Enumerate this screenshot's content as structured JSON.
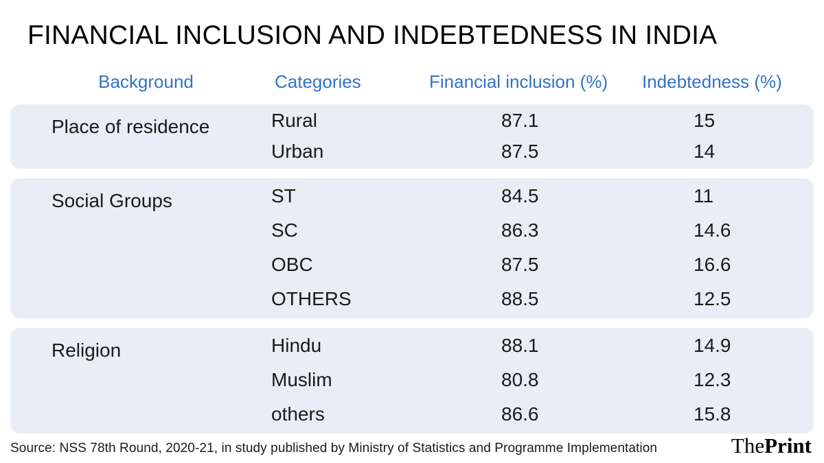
{
  "title": "FINANCIAL INCLUSION AND INDEBTEDNESS IN INDIA",
  "table": {
    "headers": [
      "Background",
      "Categories",
      "Financial inclusion (%)",
      "Indebtedness (%)"
    ],
    "groups": [
      {
        "background": "Place of residence",
        "rows": [
          {
            "category": "Rural",
            "financial_inclusion": "87.1",
            "indebtedness": "15"
          },
          {
            "category": "Urban",
            "financial_inclusion": "87.5",
            "indebtedness": "14"
          }
        ]
      },
      {
        "background": "Social Groups",
        "rows": [
          {
            "category": "ST",
            "financial_inclusion": "84.5",
            "indebtedness": "11"
          },
          {
            "category": "SC",
            "financial_inclusion": "86.3",
            "indebtedness": "14.6"
          },
          {
            "category": "OBC",
            "financial_inclusion": "87.5",
            "indebtedness": "16.6"
          },
          {
            "category": "OTHERS",
            "financial_inclusion": "88.5",
            "indebtedness": "12.5"
          }
        ]
      },
      {
        "background": "Religion",
        "rows": [
          {
            "category": "Hindu",
            "financial_inclusion": "88.1",
            "indebtedness": "14.9"
          },
          {
            "category": "Muslim",
            "financial_inclusion": "80.8",
            "indebtedness": "12.3"
          },
          {
            "category": "others",
            "financial_inclusion": "86.6",
            "indebtedness": "15.8"
          }
        ]
      }
    ]
  },
  "source": "Source: NSS 78th Round, 2020-21, in study published by Ministry of Statistics and Programme Implementation",
  "branding": {
    "the": "The",
    "print": "Print"
  },
  "colors": {
    "header_blue": "#3273C8",
    "band_background": "#E9EDF5",
    "text": "#1A1A1A",
    "title": "#000000"
  },
  "chart_data": {
    "type": "table",
    "title": "FINANCIAL INCLUSION AND INDEBTEDNESS IN INDIA",
    "columns": [
      "Background",
      "Categories",
      "Financial inclusion (%)",
      "Indebtedness (%)"
    ],
    "rows": [
      [
        "Place of residence",
        "Rural",
        87.1,
        15
      ],
      [
        "Place of residence",
        "Urban",
        87.5,
        14
      ],
      [
        "Social Groups",
        "ST",
        84.5,
        11
      ],
      [
        "Social Groups",
        "SC",
        86.3,
        14.6
      ],
      [
        "Social Groups",
        "OBC",
        87.5,
        16.6
      ],
      [
        "Social Groups",
        "OTHERS",
        88.5,
        12.5
      ],
      [
        "Religion",
        "Hindu",
        88.1,
        14.9
      ],
      [
        "Religion",
        "Muslim",
        80.8,
        12.3
      ],
      [
        "Religion",
        "others",
        86.6,
        15.8
      ]
    ],
    "source_note": "Source: NSS 78th Round, 2020-21, in study published by Ministry of Statistics and Programme Implementation"
  }
}
